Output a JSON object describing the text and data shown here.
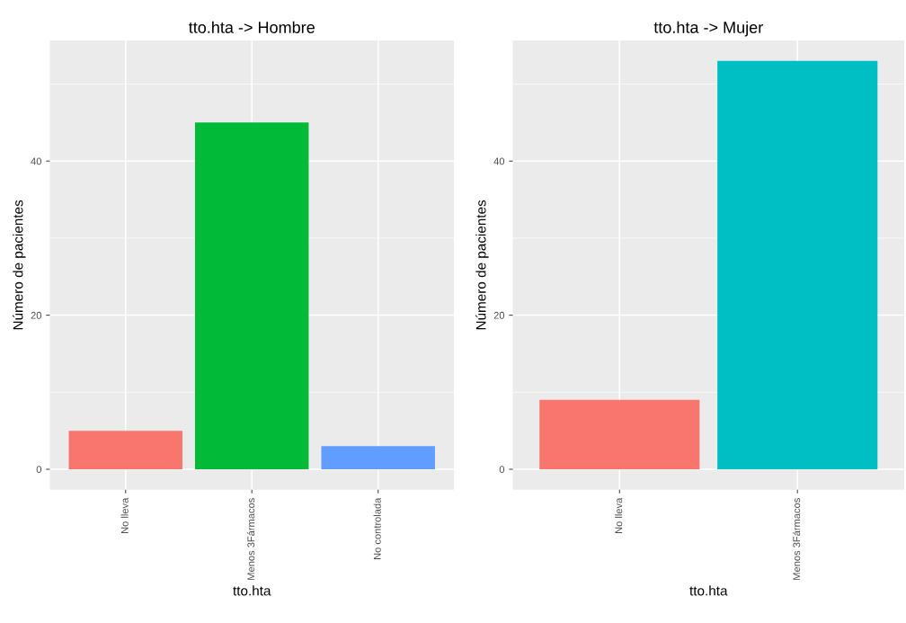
{
  "chart_data": [
    {
      "type": "bar",
      "title": "tto.hta -> Hombre",
      "xlabel": "tto.hta",
      "ylabel": "Número de pacientes",
      "categories": [
        "No lleva",
        "Menos 3Fármacos",
        "No controlada"
      ],
      "values": [
        5,
        45,
        3
      ],
      "colors": [
        "#f8766d",
        "#00ba38",
        "#619cff"
      ],
      "ylim": [
        -2.65,
        55.65
      ],
      "yticks": [
        0,
        20,
        40
      ],
      "grid": true
    },
    {
      "type": "bar",
      "title": "tto.hta -> Mujer",
      "xlabel": "tto.hta",
      "ylabel": "Número de pacientes",
      "categories": [
        "No lleva",
        "Menos 3Fármacos"
      ],
      "values": [
        9,
        53
      ],
      "colors": [
        "#f8766d",
        "#00bfc4"
      ],
      "ylim": [
        -2.65,
        55.65
      ],
      "yticks": [
        0,
        20,
        40
      ],
      "grid": true
    }
  ]
}
